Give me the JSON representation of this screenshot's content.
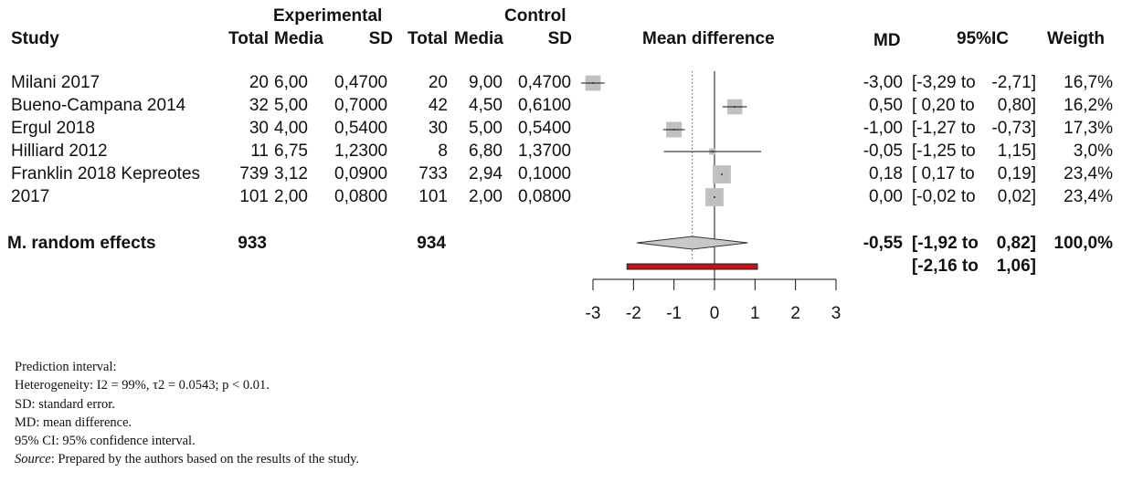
{
  "headers": {
    "experimental": "Experimental",
    "control": "Control",
    "study": "Study",
    "total_e": "Total",
    "media_e": "Media",
    "sd_e": "SD",
    "total_c": "Total",
    "media_c": "Media",
    "sd_c": "SD",
    "mean_difference": "Mean difference",
    "md": "MD",
    "ci": "95%IC",
    "weight": "Weigth"
  },
  "studies": [
    {
      "name": "Milani 2017",
      "total_e": "20",
      "media_e": "6,00",
      "sd_e": "0,4700",
      "total_c": "20",
      "media_c": "9,00",
      "sd_c": "0,4700",
      "md": "-3,00",
      "ci_open": "[-3,29 to",
      "ci_close": "-2,71]",
      "weight": "16,7%"
    },
    {
      "name": "Bueno-Campana 2014",
      "total_e": "32",
      "media_e": "5,00",
      "sd_e": "0,7000",
      "total_c": "42",
      "media_c": "4,50",
      "sd_c": "0,6100",
      "md": "0,50",
      "ci_open": "[ 0,20 to",
      "ci_close": "0,80]",
      "weight": "16,2%"
    },
    {
      "name": "Ergul 2018",
      "total_e": "30",
      "media_e": "4,00",
      "sd_e": "0,5400",
      "total_c": "30",
      "media_c": "5,00",
      "sd_c": "0,5400",
      "md": "-1,00",
      "ci_open": "[-1,27 to",
      "ci_close": "-0,73]",
      "weight": "17,3%"
    },
    {
      "name": "Hilliard 2012",
      "total_e": "11",
      "media_e": "6,75",
      "sd_e": "1,2300",
      "total_c": "8",
      "media_c": "6,80",
      "sd_c": "1,3700",
      "md": "-0,05",
      "ci_open": "[-1,25 to",
      "ci_close": "1,15]",
      "weight": "3,0%"
    },
    {
      "name": "Franklin 2018 Kepreotes",
      "total_e": "739",
      "media_e": "3,12",
      "sd_e": "0,0900",
      "total_c": "733",
      "media_c": "2,94",
      "sd_c": "0,1000",
      "md": "0,18",
      "ci_open": "[ 0,17 to",
      "ci_close": "0,19]",
      "weight": "23,4%"
    },
    {
      "name": "2017",
      "total_e": "101",
      "media_e": "2,00",
      "sd_e": "0,0800",
      "total_c": "101",
      "media_c": "2,00",
      "sd_c": "0,0800",
      "md": "0,00",
      "ci_open": "[-0,02 to",
      "ci_close": "0,02]",
      "weight": "23,4%"
    }
  ],
  "summary": {
    "label": "M. random effects",
    "total_e": "933",
    "total_c": "934",
    "md": "-0,55",
    "ci_open": "[-1,92 to",
    "ci_close": "0,82]",
    "weight": "100,0%",
    "pi_open": "[-2,16 to",
    "pi_close": "1,06]"
  },
  "chart_data": {
    "type": "forest",
    "xlim": [
      -3,
      3
    ],
    "ticks": [
      "-3",
      "-2",
      "-1",
      "0",
      "1",
      "2",
      "3"
    ],
    "null_line": 0,
    "studies": [
      {
        "md": -3.0,
        "lo": -3.29,
        "hi": -2.71,
        "weight": 16.7
      },
      {
        "md": 0.5,
        "lo": 0.2,
        "hi": 0.8,
        "weight": 16.2
      },
      {
        "md": -1.0,
        "lo": -1.27,
        "hi": -0.73,
        "weight": 17.3
      },
      {
        "md": -0.05,
        "lo": -1.25,
        "hi": 1.15,
        "weight": 3.0
      },
      {
        "md": 0.18,
        "lo": 0.17,
        "hi": 0.19,
        "weight": 23.4
      },
      {
        "md": 0.0,
        "lo": -0.02,
        "hi": 0.02,
        "weight": 23.4
      }
    ],
    "pooled": {
      "md": -0.55,
      "lo": -1.92,
      "hi": 0.82
    },
    "prediction_interval": {
      "lo": -2.16,
      "hi": 1.06
    },
    "colors": {
      "square": "#c0c0c0",
      "diamond": "#c8c8c8",
      "prediction": "#c0141c"
    }
  },
  "notes": {
    "line1": "Prediction interval:",
    "line2": "Heterogeneity: I2 = 99%, τ2 = 0.0543; p < 0.01.",
    "line3": "SD: standard error.",
    "line4": "MD: mean difference.",
    "line5": "95% CI: 95% confidence interval.",
    "source_label": "Source",
    "source_text": ": Prepared by the authors based on the results of the study."
  }
}
